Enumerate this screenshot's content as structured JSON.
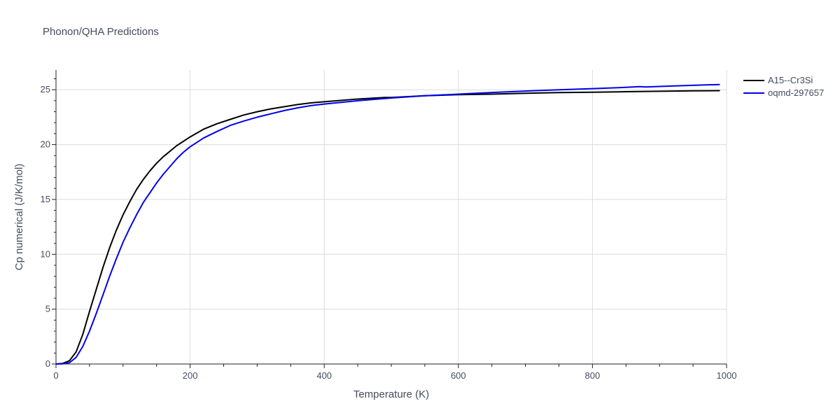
{
  "chart_data": {
    "type": "line",
    "title": "Phonon/QHA Predictions",
    "xlabel": "Temperature (K)",
    "ylabel": "Cp numerical (J/K/mol)",
    "xlim": [
      0,
      1000
    ],
    "ylim": [
      0,
      26.8
    ],
    "xticks": [
      0,
      200,
      400,
      600,
      800,
      1000
    ],
    "yticks": [
      0,
      5,
      10,
      15,
      20,
      25
    ],
    "grid": true,
    "legend_position": "top-right",
    "series": [
      {
        "name": "A15--Cr3Si",
        "color": "#000000",
        "x": [
          0,
          10,
          20,
          30,
          40,
          50,
          60,
          70,
          80,
          90,
          100,
          110,
          120,
          130,
          140,
          150,
          160,
          170,
          180,
          190,
          200,
          220,
          240,
          260,
          280,
          300,
          320,
          340,
          360,
          380,
          400,
          450,
          490,
          500,
          550,
          600,
          650,
          700,
          750,
          800,
          850,
          900,
          950,
          990
        ],
        "y": [
          0,
          0.05,
          0.3,
          1.1,
          2.7,
          4.8,
          6.8,
          8.8,
          10.6,
          12.2,
          13.6,
          14.8,
          15.9,
          16.8,
          17.6,
          18.3,
          18.9,
          19.4,
          19.9,
          20.3,
          20.7,
          21.4,
          21.9,
          22.3,
          22.7,
          23.0,
          23.25,
          23.45,
          23.65,
          23.8,
          23.9,
          24.15,
          24.3,
          24.3,
          24.45,
          24.55,
          24.6,
          24.68,
          24.74,
          24.78,
          24.82,
          24.86,
          24.9,
          24.92
        ]
      },
      {
        "name": "oqmd-297657",
        "color": "#0000ee",
        "x": [
          0,
          10,
          20,
          30,
          40,
          50,
          60,
          70,
          80,
          90,
          100,
          110,
          120,
          130,
          140,
          150,
          160,
          170,
          180,
          190,
          200,
          220,
          240,
          260,
          280,
          300,
          320,
          340,
          360,
          380,
          400,
          450,
          500,
          550,
          600,
          650,
          700,
          750,
          800,
          850,
          870,
          880,
          900,
          950,
          990
        ],
        "y": [
          0,
          0.02,
          0.12,
          0.6,
          1.6,
          3.0,
          4.6,
          6.3,
          8.0,
          9.6,
          11.1,
          12.4,
          13.6,
          14.7,
          15.6,
          16.5,
          17.3,
          18.0,
          18.7,
          19.3,
          19.8,
          20.6,
          21.2,
          21.75,
          22.15,
          22.5,
          22.8,
          23.1,
          23.35,
          23.55,
          23.7,
          24.0,
          24.25,
          24.45,
          24.6,
          24.75,
          24.88,
          25.0,
          25.1,
          25.22,
          25.28,
          25.25,
          25.3,
          25.4,
          25.48
        ]
      }
    ]
  }
}
